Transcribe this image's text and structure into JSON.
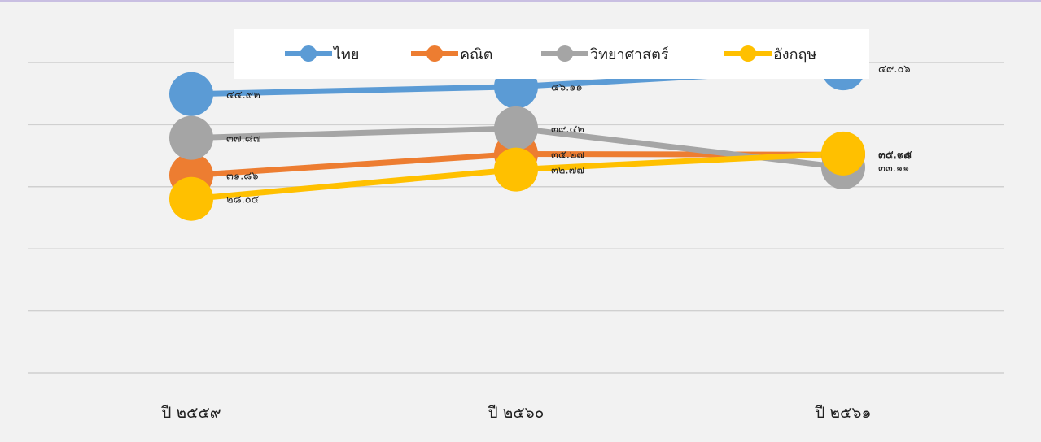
{
  "chart_data": {
    "type": "line",
    "title": "",
    "xlabel": "",
    "ylabel": "",
    "categories": [
      "ปี ๒๕๕๙",
      "ปี ๒๕๖๐",
      "ปี ๒๕๖๑"
    ],
    "ylim": [
      0,
      50
    ],
    "grid": true,
    "legend": "top-center",
    "series": [
      {
        "name": "ไทย",
        "color": "#5b9bd5",
        "values": [
          44.92,
          46.11,
          49.06
        ],
        "labels": [
          "๔๔.๙๒",
          "๔๖.๑๑",
          "๔๙.๐๖"
        ]
      },
      {
        "name": "คณิต",
        "color": "#ed7d31",
        "values": [
          31.86,
          35.27,
          35.17
        ],
        "labels": [
          "๓๑.๘๖",
          "๓๕.๒๗",
          "๓๕.๑๗"
        ]
      },
      {
        "name": "วิทยาศาสตร์",
        "color": "#a5a5a5",
        "values": [
          37.87,
          39.42,
          33.11
        ],
        "labels": [
          "๓๗.๘๗",
          "๓๙.๔๒",
          "๓๓.๑๑"
        ]
      },
      {
        "name": "อังกฤษ",
        "color": "#ffc000",
        "values": [
          28.05,
          32.77,
          35.35
        ],
        "labels": [
          "๒๘.๐๕",
          "๓๒.๗๗",
          "๓๕.๓๕"
        ]
      }
    ]
  }
}
